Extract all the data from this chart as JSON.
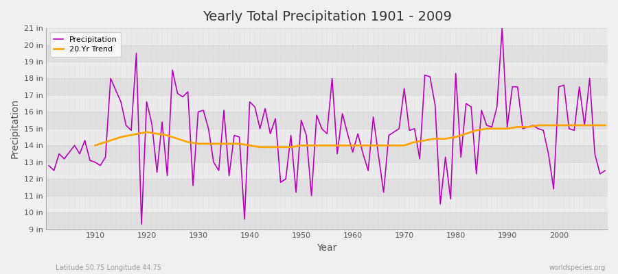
{
  "title": "Yearly Total Precipitation 1901 - 2009",
  "xlabel": "Year",
  "ylabel": "Precipitation",
  "subtitle_left": "Latitude 50.75 Longitude 44.75",
  "subtitle_right": "worldspecies.org",
  "years": [
    1901,
    1902,
    1903,
    1904,
    1905,
    1906,
    1907,
    1908,
    1909,
    1910,
    1911,
    1912,
    1913,
    1914,
    1915,
    1916,
    1917,
    1918,
    1919,
    1920,
    1921,
    1922,
    1923,
    1924,
    1925,
    1926,
    1927,
    1928,
    1929,
    1930,
    1931,
    1932,
    1933,
    1934,
    1935,
    1936,
    1937,
    1938,
    1939,
    1940,
    1941,
    1942,
    1943,
    1944,
    1945,
    1946,
    1947,
    1948,
    1949,
    1950,
    1951,
    1952,
    1953,
    1954,
    1955,
    1956,
    1957,
    1958,
    1959,
    1960,
    1961,
    1962,
    1963,
    1964,
    1965,
    1966,
    1967,
    1968,
    1969,
    1970,
    1971,
    1972,
    1973,
    1974,
    1975,
    1976,
    1977,
    1978,
    1979,
    1980,
    1981,
    1982,
    1983,
    1984,
    1985,
    1986,
    1987,
    1988,
    1989,
    1990,
    1991,
    1992,
    1993,
    1994,
    1995,
    1996,
    1997,
    1998,
    1999,
    2000,
    2001,
    2002,
    2003,
    2004,
    2005,
    2006,
    2007,
    2008,
    2009
  ],
  "precipitation": [
    12.8,
    12.5,
    13.5,
    13.2,
    13.6,
    14.0,
    13.5,
    14.3,
    13.1,
    13.0,
    12.8,
    13.3,
    18.0,
    17.3,
    16.6,
    15.2,
    14.9,
    19.5,
    9.3,
    16.6,
    15.3,
    12.4,
    15.4,
    12.2,
    18.5,
    17.1,
    16.9,
    17.2,
    11.6,
    16.0,
    16.1,
    15.0,
    13.0,
    12.5,
    16.1,
    12.2,
    14.6,
    14.5,
    9.6,
    16.6,
    16.3,
    15.0,
    16.2,
    14.7,
    15.6,
    11.8,
    12.0,
    14.6,
    11.2,
    15.5,
    14.6,
    11.0,
    15.8,
    15.0,
    14.7,
    18.0,
    13.5,
    15.9,
    14.7,
    13.6,
    14.7,
    13.5,
    12.5,
    15.7,
    13.4,
    11.2,
    14.6,
    14.8,
    15.0,
    17.4,
    14.9,
    15.0,
    13.2,
    18.2,
    18.1,
    16.4,
    10.5,
    13.3,
    10.8,
    18.3,
    13.3,
    16.5,
    16.3,
    12.3,
    16.1,
    15.2,
    15.1,
    16.3,
    21.0,
    15.1,
    17.5,
    17.5,
    15.0,
    15.1,
    15.2,
    15.0,
    14.9,
    13.5,
    11.4,
    17.5,
    17.6,
    15.0,
    14.9,
    17.5,
    15.2,
    18.0,
    13.5,
    12.3,
    12.5
  ],
  "trend_years": [
    1910,
    1915,
    1920,
    1922,
    1924,
    1926,
    1928,
    1930,
    1932,
    1934,
    1936,
    1938,
    1940,
    1942,
    1944,
    1946,
    1948,
    1950,
    1952,
    1954,
    1956,
    1958,
    1960,
    1962,
    1964,
    1966,
    1968,
    1970,
    1972,
    1974,
    1976,
    1978,
    1980,
    1982,
    1984,
    1986,
    1988,
    1990,
    1992,
    1994,
    1996,
    1998,
    2000,
    2002,
    2004,
    2006,
    2008,
    2009
  ],
  "trend_values": [
    14.0,
    14.5,
    14.8,
    14.7,
    14.6,
    14.4,
    14.2,
    14.1,
    14.1,
    14.1,
    14.1,
    14.1,
    14.0,
    13.9,
    13.9,
    13.9,
    13.9,
    14.0,
    14.0,
    14.0,
    14.0,
    14.0,
    14.0,
    14.0,
    14.0,
    14.0,
    14.0,
    14.0,
    14.2,
    14.3,
    14.4,
    14.4,
    14.5,
    14.7,
    14.9,
    15.0,
    15.0,
    15.0,
    15.1,
    15.1,
    15.2,
    15.2,
    15.2,
    15.2,
    15.2,
    15.2,
    15.2,
    15.2
  ],
  "precip_color": "#BB00BB",
  "trend_color": "#FFA500",
  "bg_color": "#F0F0F0",
  "plot_bg_color": "#F5F5F5",
  "grid_color": "#DDDDDD",
  "band_color_light": "#EBEBEB",
  "band_color_dark": "#E0E0E0",
  "ylim": [
    9,
    21
  ],
  "yticks": [
    9,
    10,
    11,
    12,
    13,
    14,
    15,
    16,
    17,
    18,
    19,
    20,
    21
  ],
  "xlim_min": 1901,
  "xlim_max": 2009,
  "xticks": [
    1910,
    1920,
    1930,
    1940,
    1950,
    1960,
    1970,
    1980,
    1990,
    2000
  ]
}
